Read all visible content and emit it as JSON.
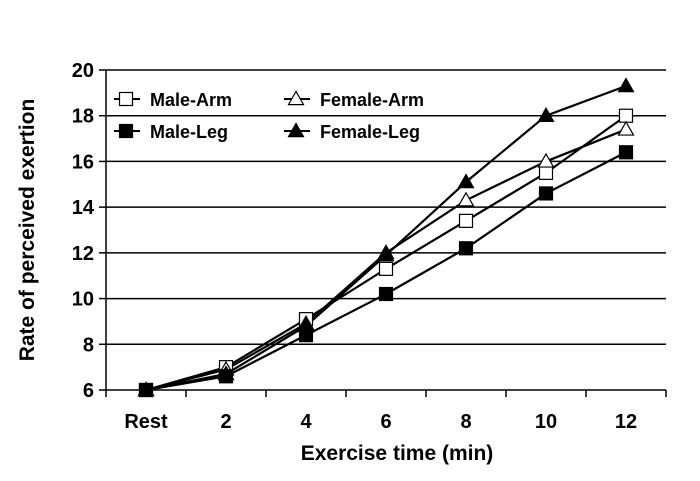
{
  "chart_data": {
    "type": "line",
    "title": "",
    "xlabel": "Exercise time (min)",
    "ylabel": "Rate of perceived exertion",
    "categories": [
      "Rest",
      "2",
      "4",
      "6",
      "8",
      "10",
      "12"
    ],
    "ylim": [
      6,
      20
    ],
    "yticks": [
      "6",
      "8",
      "10",
      "12",
      "14",
      "16",
      "18",
      "20"
    ],
    "grid": "horizontal",
    "legend_position": "top-left",
    "series": [
      {
        "name": "Male-Arm",
        "marker": "square-open",
        "values": [
          6.0,
          7.0,
          9.1,
          11.3,
          13.4,
          15.5,
          18.0
        ]
      },
      {
        "name": "Female-Arm",
        "marker": "triangle-open",
        "values": [
          6.0,
          6.9,
          8.9,
          12.0,
          14.3,
          16.0,
          17.4
        ]
      },
      {
        "name": "Male-Leg",
        "marker": "square-filled",
        "values": [
          6.0,
          6.6,
          8.4,
          10.2,
          12.2,
          14.6,
          16.4
        ]
      },
      {
        "name": "Female-Leg",
        "marker": "triangle-filled",
        "values": [
          6.0,
          6.7,
          8.8,
          11.9,
          15.1,
          18.0,
          19.3
        ]
      }
    ]
  }
}
